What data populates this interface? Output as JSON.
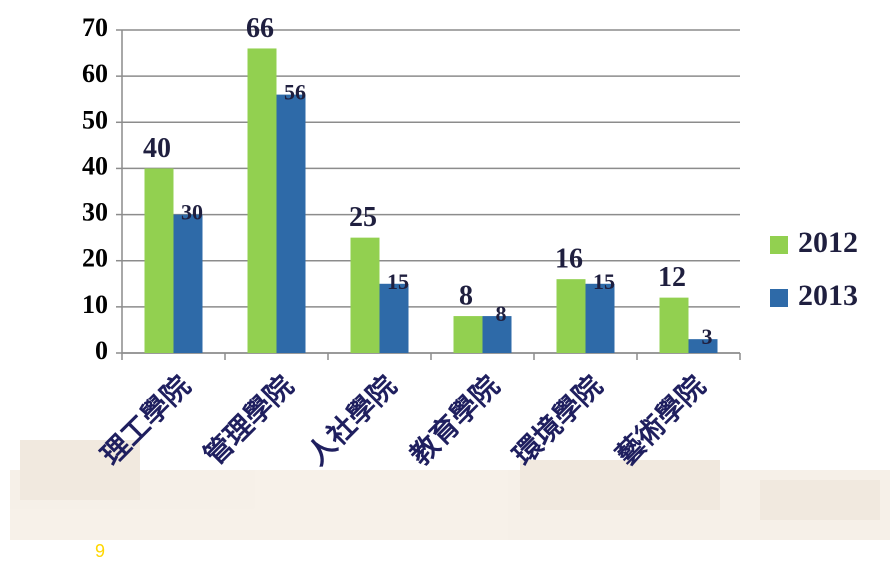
{
  "chart_data": {
    "type": "bar",
    "categories": [
      "理工學院",
      "管理學院",
      "人社學院",
      "教育學院",
      "環境學院",
      "藝術學院"
    ],
    "series": [
      {
        "name": "2012",
        "color": "#92d050",
        "values": [
          40,
          66,
          25,
          8,
          16,
          12
        ]
      },
      {
        "name": "2013",
        "color": "#2e6aa8",
        "values": [
          30,
          56,
          15,
          8,
          15,
          3
        ]
      }
    ],
    "ylim": [
      0,
      70
    ],
    "yticks": [
      0,
      10,
      20,
      30,
      40,
      50,
      60,
      70
    ],
    "grid": true,
    "legend": "right"
  },
  "page_number": "9"
}
